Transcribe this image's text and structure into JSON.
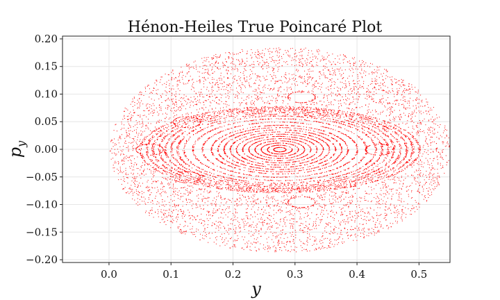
{
  "chart_data": {
    "type": "scatter",
    "title": "Hénon-Heiles True Poincaré Plot",
    "xlabel": "y",
    "ylabel": "p",
    "ylabel_sub": "y",
    "xlim": [
      -0.075,
      0.55
    ],
    "ylim": [
      -0.205,
      0.205
    ],
    "x_ticks": [
      0.0,
      0.1,
      0.2,
      0.3,
      0.4,
      0.5
    ],
    "x_tick_labels": [
      "0.0",
      "0.1",
      "0.2",
      "0.3",
      "0.4",
      "0.5"
    ],
    "y_ticks": [
      -0.2,
      -0.15,
      -0.1,
      -0.05,
      0.0,
      0.05,
      0.1,
      0.15,
      0.2
    ],
    "y_tick_labels": [
      "−0.20",
      "−0.15",
      "−0.10",
      "−0.05",
      "0.00",
      "0.05",
      "0.10",
      "0.15",
      "0.20"
    ],
    "grid": true,
    "marker_color": "#ff0000",
    "series": [
      {
        "x_center": 0.275,
        "y_center": 0.0,
        "x_extent": [
          -0.045,
          0.515
        ],
        "y_extent": [
          -0.19,
          0.19
        ],
        "regular_orbit_x_half_widths": [
          0.01,
          0.02,
          0.03,
          0.04,
          0.05,
          0.06,
          0.07,
          0.08,
          0.09,
          0.1,
          0.11,
          0.125,
          0.14,
          0.155,
          0.165,
          0.175,
          0.185,
          0.195,
          0.205,
          0.215,
          0.225
        ],
        "regular_orbit_y_half_heights": [
          0.004,
          0.008,
          0.012,
          0.016,
          0.02,
          0.024,
          0.028,
          0.032,
          0.036,
          0.04,
          0.044,
          0.05,
          0.056,
          0.061,
          0.064,
          0.067,
          0.07,
          0.072,
          0.074,
          0.076,
          0.078
        ],
        "islands": [
          {
            "x": 0.125,
            "y": 0.05
          },
          {
            "x": 0.125,
            "y": -0.05
          },
          {
            "x": 0.31,
            "y": 0.095
          },
          {
            "x": 0.31,
            "y": -0.095
          },
          {
            "x": 0.435,
            "y": 0.0
          },
          {
            "x": 0.065,
            "y": 0.0
          }
        ]
      }
    ]
  }
}
